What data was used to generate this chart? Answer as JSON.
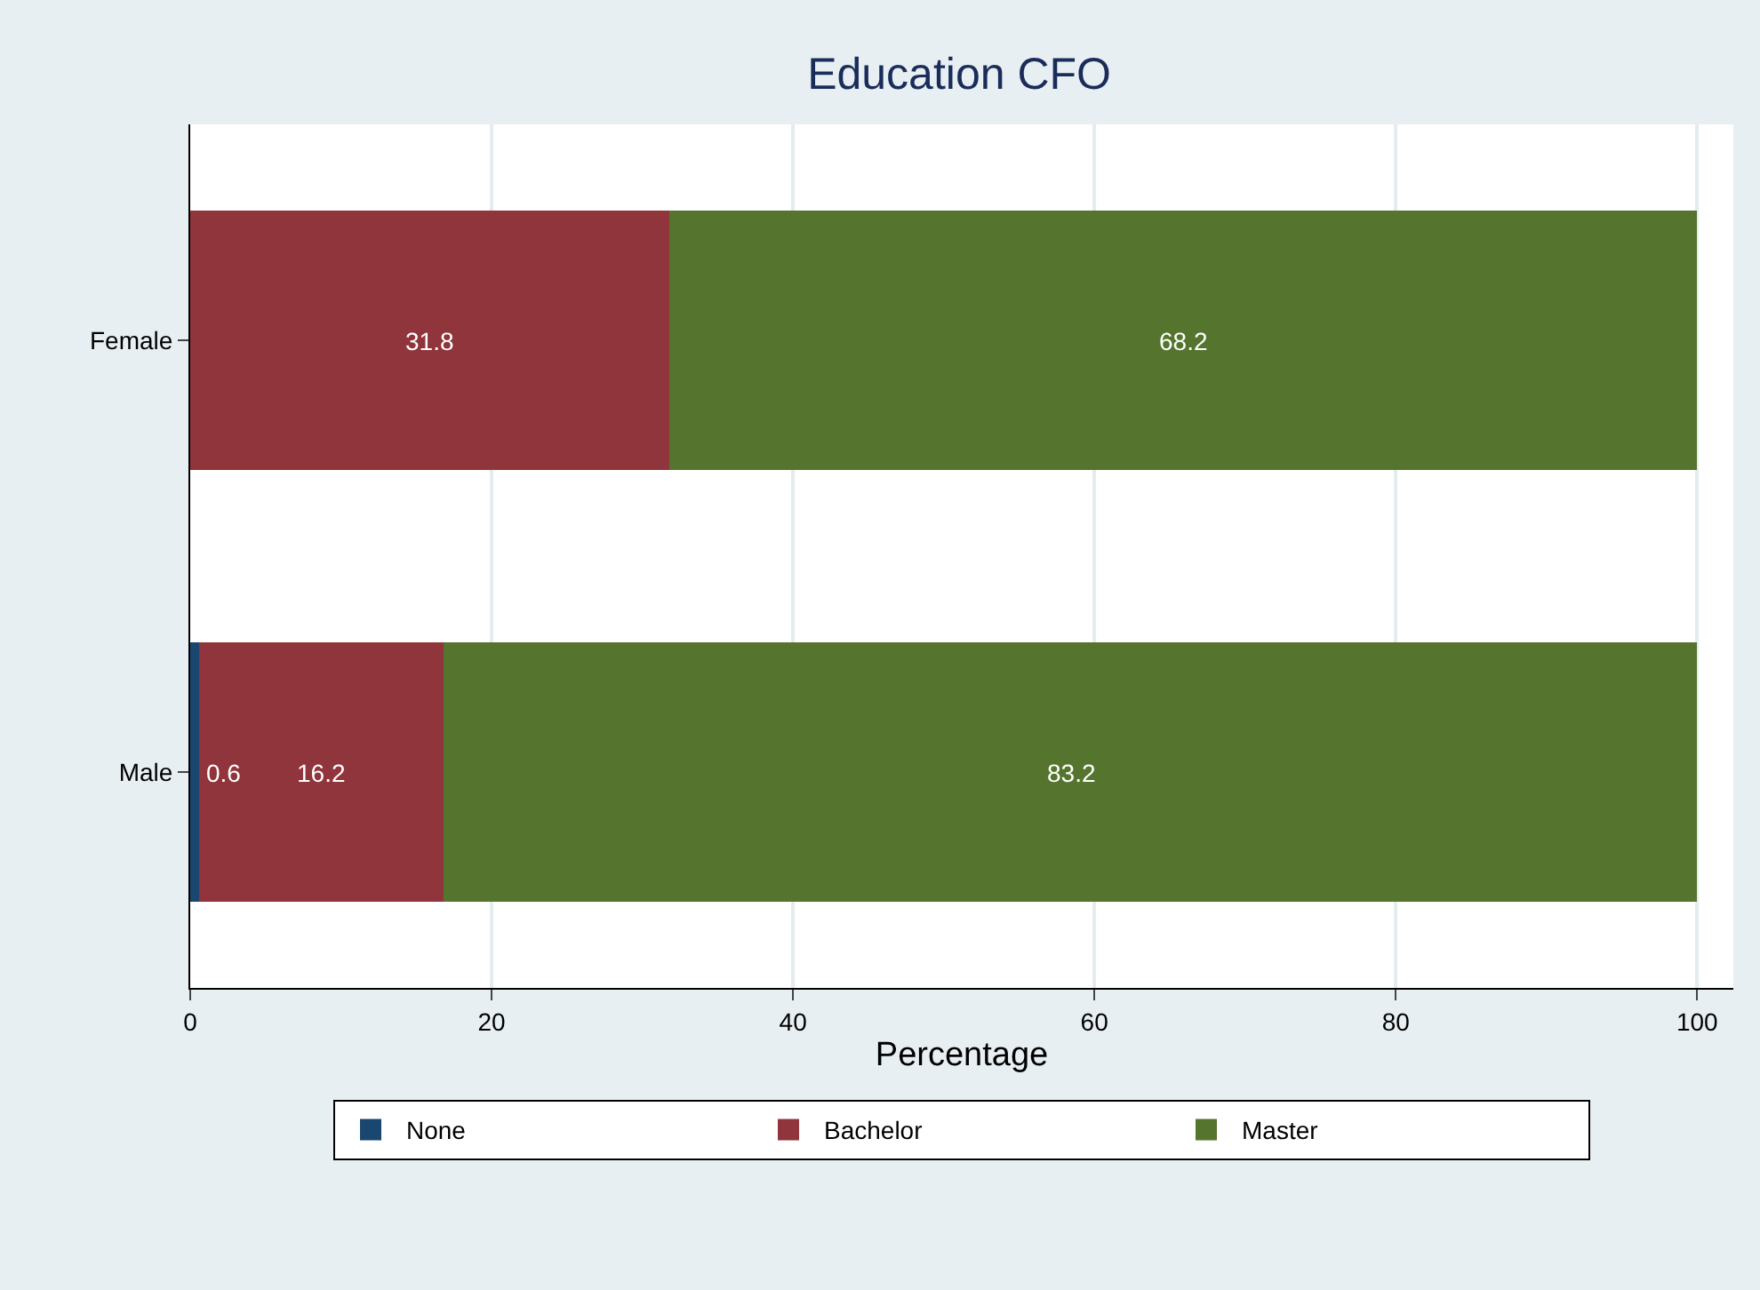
{
  "chart_data": {
    "type": "bar",
    "title": "Education CFO",
    "xlabel": "Percentage",
    "orientation": "horizontal",
    "stacked": true,
    "categories": [
      "Female",
      "Male"
    ],
    "series": [
      {
        "name": "None",
        "color": "#1a476f",
        "values": [
          null,
          0.6
        ],
        "value_labels": [
          null,
          "0.6"
        ]
      },
      {
        "name": "Bachelor",
        "color": "#90353b",
        "values": [
          31.8,
          16.2
        ],
        "value_labels": [
          "31.8",
          "16.2"
        ]
      },
      {
        "name": "Master",
        "color": "#55752f",
        "values": [
          68.2,
          83.2
        ],
        "value_labels": [
          "68.2",
          "83.2"
        ]
      }
    ],
    "xlim": [
      0,
      102.4
    ],
    "xticks": [
      0,
      20,
      40,
      60,
      80,
      100
    ],
    "grid": "x",
    "legend": "bottom"
  }
}
